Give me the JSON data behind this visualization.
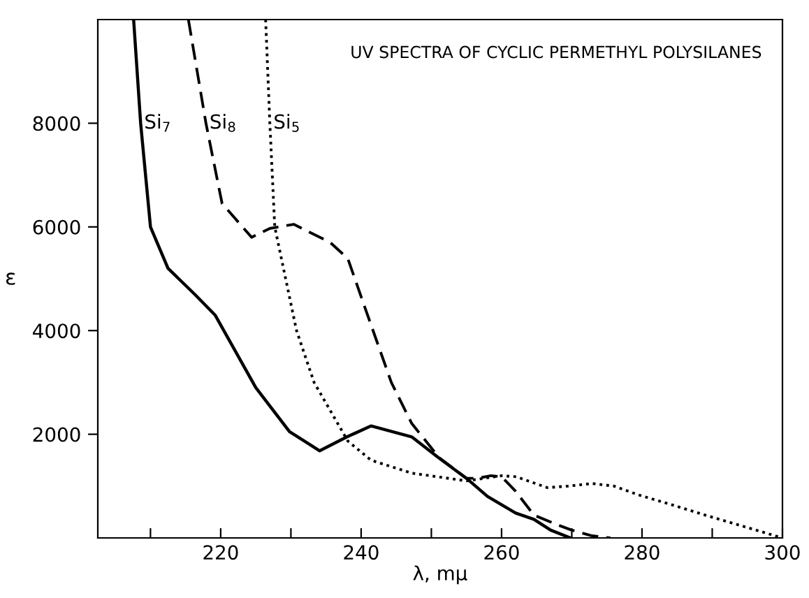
{
  "chart_data": {
    "type": "line",
    "title": "UV SPECTRA OF CYCLIC PERMETHYL POLYSILANES",
    "xlabel": "λ, mμ",
    "ylabel": "ε",
    "xlim": [
      202.5,
      300
    ],
    "ylim": [
      0,
      10000
    ],
    "xticks": [
      {
        "value": 210,
        "label": null
      },
      220,
      {
        "value": 230,
        "label": null
      },
      240,
      {
        "value": 250,
        "label": null
      },
      260,
      {
        "value": 270,
        "label": null
      },
      280,
      {
        "value": 290,
        "label": null
      },
      300
    ],
    "yticks": [
      2000,
      4000,
      6000,
      8000
    ],
    "grid": false,
    "legend": false,
    "marker": "none",
    "series": [
      {
        "name": "Si$_{7}$",
        "color": "#000000",
        "line_style": "solid",
        "x": [
          207.6,
          208.6,
          210,
          212.5,
          216.3,
          219.2,
          225,
          229.8,
          232.7,
          234.1,
          238,
          241.4,
          247.2,
          251,
          255,
          258,
          262,
          264.6,
          267,
          269.8
        ],
        "values": [
          10000,
          8000,
          6000,
          5200,
          4700,
          4300,
          2900,
          2050,
          1800,
          1680,
          1950,
          2160,
          1950,
          1550,
          1150,
          800,
          480,
          360,
          150,
          0
        ]
      },
      {
        "name": "Si$_{8}$",
        "color": "#000000",
        "line_style": "dashed",
        "x": [
          215.4,
          217.9,
          220.2,
          224.4,
          227,
          230.4,
          235.6,
          238.1,
          240.5,
          244.3,
          247.2,
          251.1,
          255,
          256.5,
          258.5,
          260,
          262,
          264.6,
          268,
          270,
          272.9,
          275.5
        ],
        "values": [
          10000,
          8000,
          6450,
          5800,
          5970,
          6050,
          5700,
          5390,
          4460,
          3000,
          2210,
          1550,
          1150,
          1150,
          1200,
          1180,
          900,
          440,
          250,
          150,
          40,
          0
        ]
      },
      {
        "name": "Si$_{5}$",
        "color": "#000000",
        "line_style": "dotted",
        "x": [
          226.4,
          227,
          227.7,
          230.8,
          233.3,
          238.1,
          241.4,
          247.2,
          255,
          257.5,
          260,
          262.1,
          266.5,
          269.5,
          272.9,
          276,
          279.5,
          284,
          289,
          295,
          300
        ],
        "values": [
          10000,
          8000,
          6000,
          4000,
          3000,
          1870,
          1500,
          1250,
          1100,
          1150,
          1200,
          1180,
          970,
          1000,
          1050,
          1000,
          830,
          650,
          440,
          200,
          0
        ]
      }
    ]
  }
}
